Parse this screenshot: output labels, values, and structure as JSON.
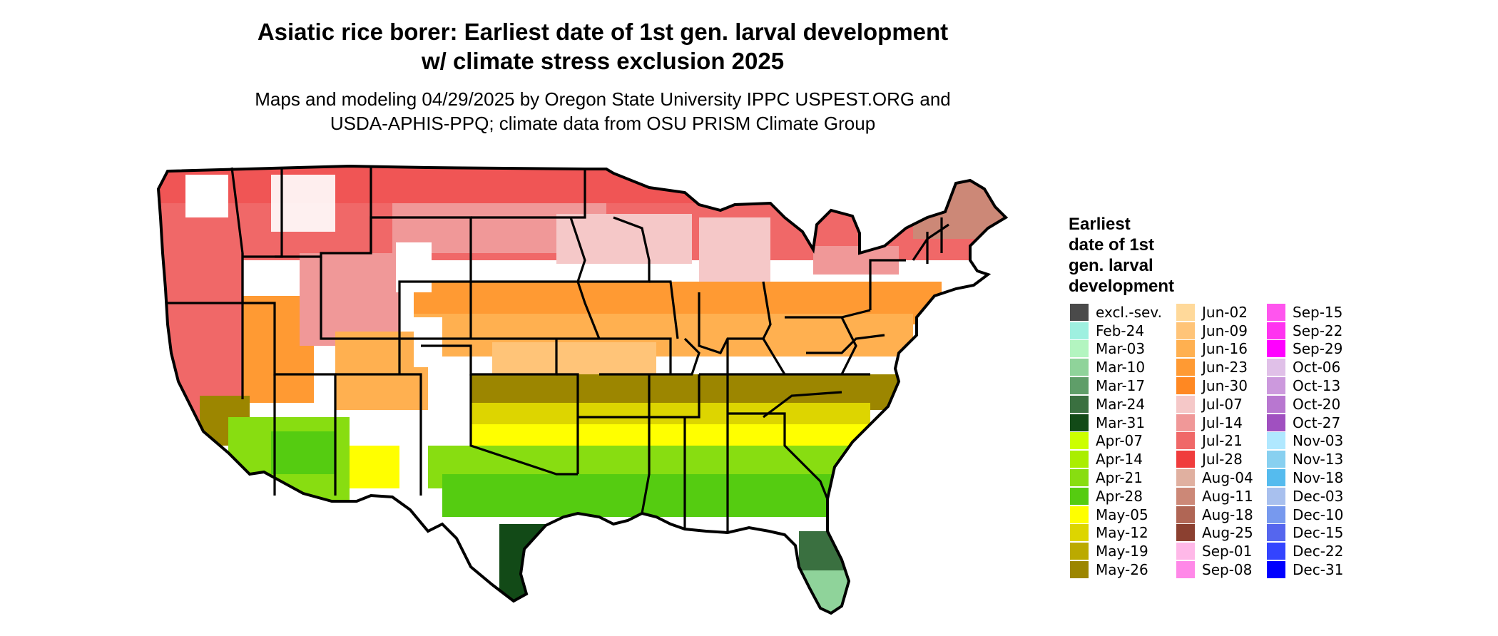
{
  "title": {
    "line1": "Asiatic rice borer: Earliest date of 1st gen. larval development",
    "line2": "w/ climate stress exclusion 2025"
  },
  "subtitle": {
    "line1": "Maps and modeling 04/29/2025 by Oregon State University IPPC USPEST.ORG and",
    "line2": "USDA-APHIS-PPQ; climate data from OSU PRISM Climate Group"
  },
  "legend": {
    "title_lines": [
      "Earliest",
      "date of 1st",
      "gen. larval",
      "development"
    ],
    "columns": [
      [
        {
          "label": "excl.-sev.",
          "color": "#4a4a4a"
        },
        {
          "label": "Feb-24",
          "color": "#9ef0e0"
        },
        {
          "label": "Mar-03",
          "color": "#b3f5c0"
        },
        {
          "label": "Mar-10",
          "color": "#8fd39a"
        },
        {
          "label": "Mar-17",
          "color": "#5f9e69"
        },
        {
          "label": "Mar-24",
          "color": "#3a7040"
        },
        {
          "label": "Mar-31",
          "color": "#124a17"
        },
        {
          "label": "Apr-07",
          "color": "#ccff00"
        },
        {
          "label": "Apr-14",
          "color": "#aaee00"
        },
        {
          "label": "Apr-21",
          "color": "#88dd11"
        },
        {
          "label": "Apr-28",
          "color": "#55cc11"
        },
        {
          "label": "May-05",
          "color": "#ffff00"
        },
        {
          "label": "May-12",
          "color": "#ddd500"
        },
        {
          "label": "May-19",
          "color": "#bbaa00"
        },
        {
          "label": "May-26",
          "color": "#9c8600"
        }
      ],
      [
        {
          "label": "Jun-02",
          "color": "#ffd99a"
        },
        {
          "label": "Jun-09",
          "color": "#ffc478"
        },
        {
          "label": "Jun-16",
          "color": "#ffb050"
        },
        {
          "label": "Jun-23",
          "color": "#ff9a33"
        },
        {
          "label": "Jun-30",
          "color": "#ff8822"
        },
        {
          "label": "Jul-07",
          "color": "#f5c8c8"
        },
        {
          "label": "Jul-14",
          "color": "#f09898"
        },
        {
          "label": "Jul-21",
          "color": "#f06868"
        },
        {
          "label": "Jul-28",
          "color": "#f03c3c"
        },
        {
          "label": "Aug-04",
          "color": "#e0b0a0"
        },
        {
          "label": "Aug-11",
          "color": "#cc8877"
        },
        {
          "label": "Aug-18",
          "color": "#b06655"
        },
        {
          "label": "Aug-25",
          "color": "#8b4030"
        },
        {
          "label": "Sep-01",
          "color": "#ffb8e8"
        },
        {
          "label": "Sep-08",
          "color": "#ff88e8"
        }
      ],
      [
        {
          "label": "Sep-15",
          "color": "#ff55ee"
        },
        {
          "label": "Sep-22",
          "color": "#ff33f0"
        },
        {
          "label": "Sep-29",
          "color": "#ff00ff"
        },
        {
          "label": "Oct-06",
          "color": "#e0c0e8"
        },
        {
          "label": "Oct-13",
          "color": "#cc99dd"
        },
        {
          "label": "Oct-20",
          "color": "#b877d0"
        },
        {
          "label": "Oct-27",
          "color": "#a050c0"
        },
        {
          "label": "Nov-03",
          "color": "#b0e8ff"
        },
        {
          "label": "Nov-13",
          "color": "#88d0f0"
        },
        {
          "label": "Nov-18",
          "color": "#55bbee"
        },
        {
          "label": "Dec-03",
          "color": "#a8c0ee"
        },
        {
          "label": "Dec-10",
          "color": "#7799ee"
        },
        {
          "label": "Dec-15",
          "color": "#5566ee"
        },
        {
          "label": "Dec-22",
          "color": "#3344ff"
        },
        {
          "label": "Dec-31",
          "color": "#0000ff"
        }
      ]
    ]
  }
}
